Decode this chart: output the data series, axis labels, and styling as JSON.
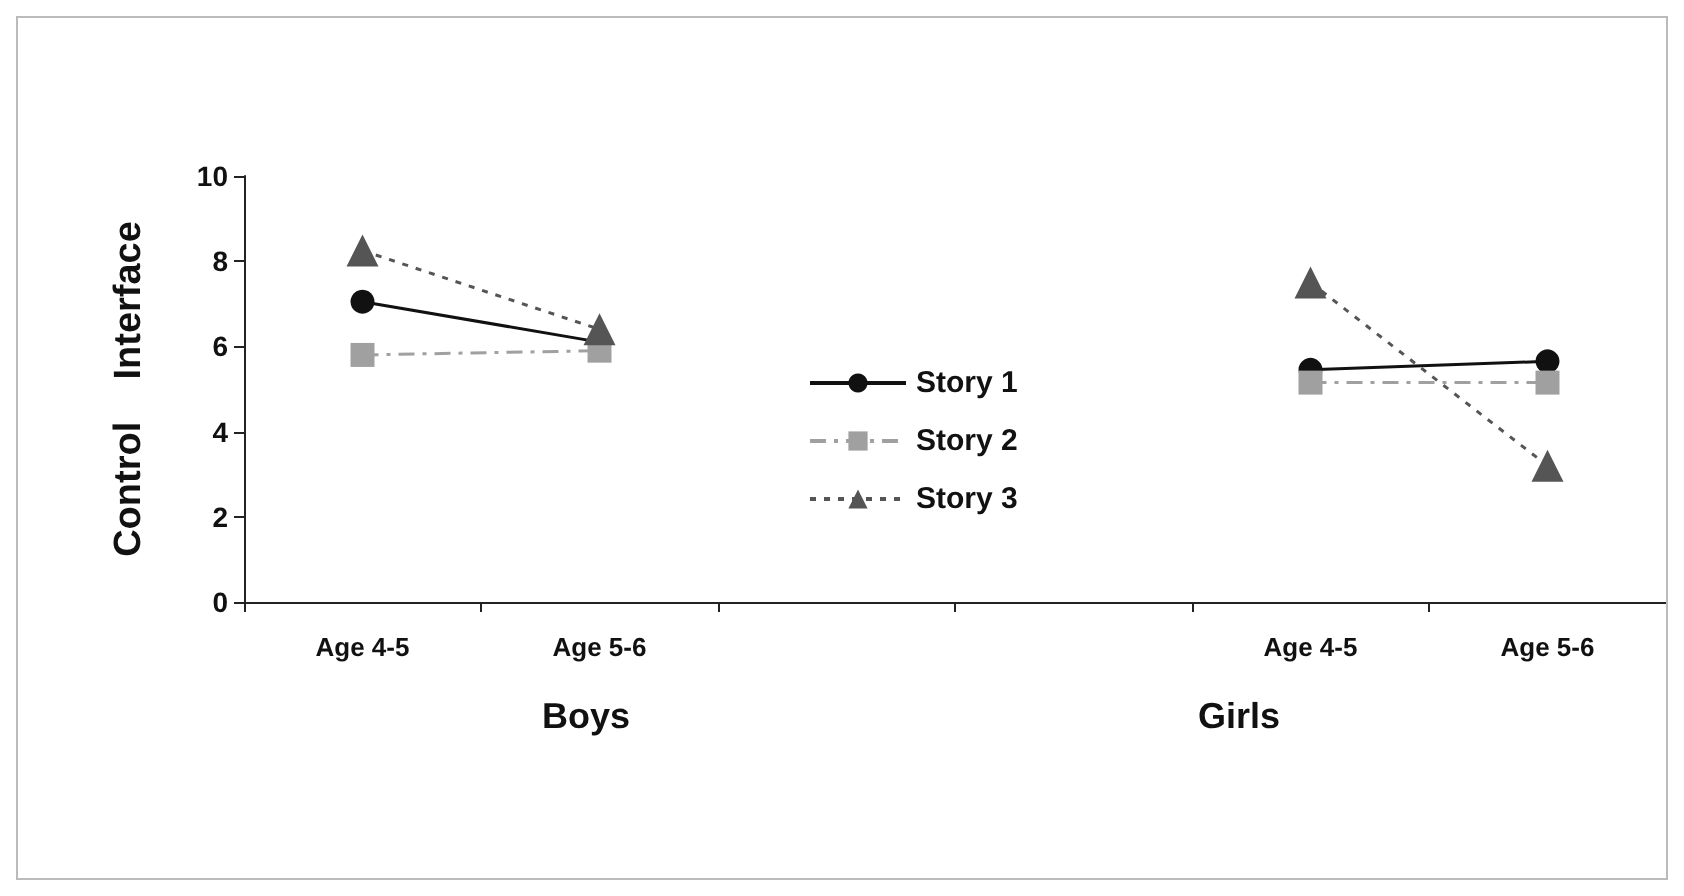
{
  "chart_data": {
    "type": "line",
    "ylabel": "Control    Interface",
    "categories": [
      "Age 4-5",
      "Age 5-6",
      null,
      null,
      "Age 4-5",
      "Age 5-6"
    ],
    "series": [
      {
        "name": "Story 1",
        "color": "#111111",
        "marker": "circle",
        "line_style": "solid",
        "values": [
          7.05,
          6.1,
          null,
          null,
          5.45,
          5.65
        ]
      },
      {
        "name": "Story 2",
        "color": "#a0a0a0",
        "marker": "square",
        "line_style": "dashed",
        "values": [
          5.8,
          5.9,
          null,
          null,
          5.15,
          5.15
        ]
      },
      {
        "name": "Story 3",
        "color": "#555555",
        "marker": "triangle",
        "line_style": "dotted",
        "values": [
          8.25,
          6.4,
          null,
          null,
          7.5,
          3.2
        ]
      }
    ],
    "ylim": [
      0,
      10
    ],
    "yticks": [
      0,
      2,
      4,
      6,
      8,
      10
    ],
    "grid": false,
    "legend": "center",
    "annotations": [
      "Boys",
      "Girls"
    ]
  }
}
